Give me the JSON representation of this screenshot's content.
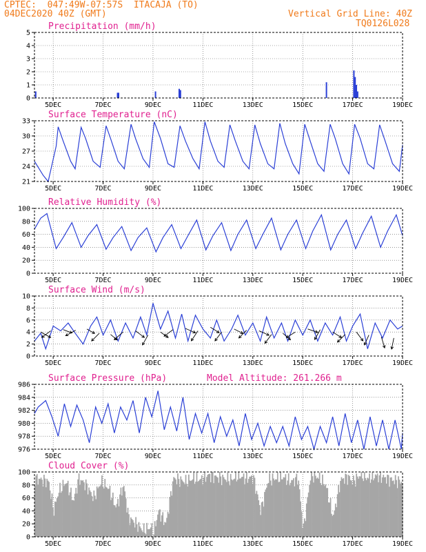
{
  "header": {
    "line1": "CPTEC:  047:49W-07:57S  ITACAJA (TO)",
    "line2": "04DEC2020 40Z (GMT)",
    "grid_note": "Vertical Grid Line: 40Z",
    "code": "TQ0126L028"
  },
  "colors": {
    "header": "#f07a1a",
    "title": "#e0208f",
    "line": "#2a3fd6",
    "cloud": "#a6a6a6"
  },
  "chart_data": [
    {
      "id": "precip",
      "type": "bar",
      "title": "Precipitation (mm/h)",
      "ylim": [
        0,
        5
      ],
      "yticks": [
        "0",
        "1",
        "2",
        "3",
        "4",
        "5"
      ],
      "xticks": [
        "5DEC",
        "7DEC",
        "9DEC",
        "11DEC",
        "13DEC",
        "15DEC",
        "17DEC",
        "19DEC"
      ],
      "x_range_days": [
        4.25,
        19.0
      ],
      "x": [
        4.3,
        7.58,
        7.62,
        9.1,
        10.05,
        10.1,
        15.95,
        17.05,
        17.1,
        17.15,
        17.2
      ],
      "values": [
        0.5,
        0.4,
        0.4,
        0.5,
        0.7,
        0.6,
        1.2,
        2.1,
        1.6,
        1.0,
        0.5
      ]
    },
    {
      "id": "temp",
      "type": "line",
      "title": "Surface Temperature (nC)",
      "ylim": [
        21,
        33
      ],
      "yticks": [
        "21",
        "24",
        "27",
        "30",
        "33"
      ],
      "xticks": [
        "5DEC",
        "7DEC",
        "9DEC",
        "11DEC",
        "13DEC",
        "15DEC",
        "17DEC",
        "19DEC"
      ],
      "x_range_days": [
        4.25,
        19.0
      ],
      "x": [
        4.25,
        4.6,
        4.8,
        5.12,
        5.2,
        5.4,
        5.7,
        5.88,
        6.12,
        6.3,
        6.6,
        6.88,
        7.12,
        7.3,
        7.6,
        7.85,
        8.12,
        8.3,
        8.6,
        8.85,
        9.05,
        9.3,
        9.6,
        9.85,
        10.08,
        10.3,
        10.6,
        10.85,
        11.08,
        11.3,
        11.6,
        11.85,
        12.08,
        12.3,
        12.6,
        12.85,
        13.08,
        13.3,
        13.6,
        13.85,
        14.08,
        14.3,
        14.6,
        14.85,
        15.08,
        15.3,
        15.6,
        15.85,
        16.1,
        16.3,
        16.6,
        16.85,
        17.08,
        17.3,
        17.6,
        17.85,
        18.08,
        18.3,
        18.6,
        18.87,
        19.0
      ],
      "values": [
        25,
        22.2,
        21,
        28,
        31.8,
        29,
        25,
        23.5,
        31.7,
        29.5,
        25,
        23.8,
        32,
        29.5,
        25,
        23.5,
        32.3,
        29.5,
        25.5,
        23.8,
        32.8,
        29.5,
        24.5,
        23.8,
        32,
        29,
        25.5,
        23.5,
        32.8,
        29,
        25,
        23.8,
        32.2,
        29,
        25,
        23.5,
        32.2,
        28.5,
        24.5,
        23.5,
        32.5,
        28.5,
        24.5,
        22.5,
        32.3,
        29,
        24.5,
        23,
        32.3,
        29.5,
        24.5,
        22.5,
        32.3,
        29.5,
        24.5,
        23.5,
        32.2,
        29,
        24.5,
        23,
        28.2
      ]
    },
    {
      "id": "rh",
      "type": "line",
      "title": "Relative Humidity (%)",
      "ylim": [
        0,
        100
      ],
      "yticks": [
        "0",
        "20",
        "40",
        "60",
        "80",
        "100"
      ],
      "xticks": [
        "5DEC",
        "7DEC",
        "9DEC",
        "11DEC",
        "13DEC",
        "15DEC",
        "17DEC",
        "19DEC"
      ],
      "x_range_days": [
        4.25,
        19.0
      ],
      "x": [
        4.25,
        4.5,
        4.75,
        5.12,
        5.4,
        5.75,
        6.12,
        6.4,
        6.75,
        7.12,
        7.4,
        7.75,
        8.12,
        8.4,
        8.75,
        9.12,
        9.4,
        9.75,
        10.12,
        10.4,
        10.75,
        11.12,
        11.4,
        11.75,
        12.12,
        12.4,
        12.75,
        13.12,
        13.4,
        13.75,
        14.12,
        14.4,
        14.75,
        15.12,
        15.4,
        15.75,
        16.12,
        16.4,
        16.75,
        17.12,
        17.4,
        17.75,
        18.12,
        18.4,
        18.75,
        19.0
      ],
      "values": [
        68,
        85,
        92,
        38,
        55,
        78,
        40,
        58,
        75,
        37,
        55,
        72,
        35,
        55,
        70,
        33,
        55,
        75,
        38,
        58,
        82,
        36,
        58,
        78,
        35,
        60,
        82,
        38,
        60,
        85,
        36,
        60,
        82,
        38,
        65,
        90,
        36,
        60,
        82,
        38,
        62,
        88,
        40,
        65,
        90,
        58
      ]
    },
    {
      "id": "wind",
      "type": "line",
      "title": "Surface Wind (m/s)",
      "ylim": [
        0,
        10
      ],
      "yticks": [
        "0",
        "2",
        "4",
        "6",
        "8",
        "10"
      ],
      "xticks": [
        "5DEC",
        "7DEC",
        "9DEC",
        "11DEC",
        "13DEC",
        "15DEC",
        "17DEC",
        "19DEC"
      ],
      "x_range_days": [
        4.25,
        19.0
      ],
      "x": [
        4.25,
        4.5,
        4.7,
        5.0,
        5.3,
        5.6,
        5.85,
        6.2,
        6.5,
        6.75,
        7.0,
        7.3,
        7.6,
        7.9,
        8.2,
        8.5,
        8.75,
        9.0,
        9.3,
        9.6,
        9.9,
        10.15,
        10.4,
        10.7,
        11.0,
        11.3,
        11.55,
        11.85,
        12.15,
        12.4,
        12.7,
        13.0,
        13.3,
        13.55,
        13.85,
        14.15,
        14.4,
        14.7,
        15.0,
        15.3,
        15.6,
        15.9,
        16.2,
        16.5,
        16.75,
        17.0,
        17.3,
        17.6,
        17.9,
        18.2,
        18.5,
        18.8,
        19.0
      ],
      "values": [
        2.5,
        3.8,
        1.2,
        5.0,
        4.2,
        5.5,
        4.0,
        2.0,
        5.0,
        6.5,
        3.5,
        6.0,
        2.5,
        5.5,
        3.0,
        6.5,
        3.5,
        8.8,
        4.5,
        7.5,
        3.0,
        7.0,
        2.5,
        6.8,
        4.5,
        3.0,
        6.0,
        2.5,
        4.5,
        6.8,
        3.5,
        5.5,
        2.5,
        6.5,
        3.0,
        5.5,
        2.5,
        6.0,
        3.5,
        6.0,
        2.5,
        5.5,
        3.5,
        6.5,
        2.5,
        5.0,
        7.0,
        1.2,
        5.5,
        3.0,
        6.0,
        4.5,
        5.0
      ],
      "arrows_days": [
        4.5,
        4.9,
        5.4,
        5.9,
        6.35,
        6.85,
        7.3,
        7.8,
        8.3,
        8.8,
        9.3,
        9.8,
        10.3,
        10.8,
        11.3,
        11.75,
        12.25,
        12.75,
        13.25,
        13.75,
        14.2,
        14.7,
        15.2,
        15.7,
        16.2,
        16.7,
        17.15,
        17.65,
        18.15,
        18.65
      ],
      "arrows_speed": [
        4.0,
        4.2,
        4.4,
        4.3,
        4.5,
        3.8,
        3.6,
        4.0,
        4.2,
        3.5,
        4.0,
        4.4,
        4.6,
        4.2,
        4.8,
        4.0,
        4.5,
        4.3,
        4.2,
        3.6,
        3.8,
        4.0,
        4.5,
        4.4,
        4.0,
        3.6,
        4.0,
        3.5,
        3.2,
        3.0
      ],
      "arrows_dx": [
        0.9,
        -0.8,
        0.8,
        -0.9,
        0.7,
        -0.7,
        0.6,
        -0.8,
        0.8,
        -0.5,
        0.7,
        -0.8,
        0.9,
        -0.6,
        0.8,
        -0.6,
        0.8,
        -0.7,
        0.9,
        -0.6,
        0.7,
        -0.8,
        0.9,
        -0.5,
        0.8,
        -0.7,
        0.6,
        -0.4,
        0.3,
        -0.2
      ],
      "arrows_dy": [
        -0.5,
        -0.6,
        -0.3,
        -0.5,
        -0.4,
        -0.7,
        -0.5,
        -0.7,
        -0.6,
        -0.9,
        -0.5,
        -0.6,
        -0.4,
        -0.9,
        -0.5,
        -0.8,
        -0.4,
        -0.7,
        -0.4,
        -0.8,
        -0.6,
        -0.5,
        -0.3,
        -0.9,
        -0.5,
        -0.7,
        -0.8,
        -0.9,
        -1.0,
        -1.0
      ]
    },
    {
      "id": "press",
      "type": "line",
      "title": "Surface Pressure (hPa)",
      "annotation": "Model Altitude: 261.266 m",
      "ylim": [
        976,
        986
      ],
      "yticks": [
        "976",
        "978",
        "980",
        "982",
        "984",
        "986"
      ],
      "xticks": [
        "5DEC",
        "7DEC",
        "9DEC",
        "11DEC",
        "13DEC",
        "15DEC",
        "17DEC",
        "19DEC"
      ],
      "x_range_days": [
        4.25,
        19.0
      ],
      "x": [
        4.25,
        4.4,
        4.7,
        4.95,
        5.2,
        5.45,
        5.7,
        5.95,
        6.2,
        6.45,
        6.7,
        6.95,
        7.2,
        7.45,
        7.7,
        7.95,
        8.2,
        8.45,
        8.7,
        8.95,
        9.2,
        9.45,
        9.7,
        9.95,
        10.2,
        10.45,
        10.7,
        10.95,
        11.2,
        11.45,
        11.7,
        11.95,
        12.2,
        12.45,
        12.7,
        12.95,
        13.2,
        13.45,
        13.7,
        13.95,
        14.2,
        14.45,
        14.7,
        14.95,
        15.2,
        15.45,
        15.7,
        15.95,
        16.2,
        16.45,
        16.7,
        16.95,
        17.2,
        17.45,
        17.7,
        17.95,
        18.2,
        18.45,
        18.7,
        18.95,
        19.0
      ],
      "values": [
        981.5,
        982.5,
        983.5,
        981.0,
        978.0,
        983.0,
        979.5,
        982.8,
        980.5,
        977.0,
        982.5,
        980.0,
        983.0,
        978.5,
        982.5,
        980.5,
        983.5,
        978.5,
        984.0,
        981.0,
        985.0,
        979.0,
        982.5,
        978.8,
        984.0,
        977.5,
        981.5,
        978.5,
        981.5,
        977.0,
        981.0,
        978.0,
        980.5,
        976.5,
        981.5,
        977.5,
        980.0,
        976.5,
        979.5,
        977.0,
        979.5,
        976.5,
        981.0,
        977.5,
        979.5,
        976.0,
        979.5,
        977.0,
        981.0,
        976.5,
        981.5,
        977.0,
        980.5,
        976.0,
        981.0,
        976.5,
        980.5,
        976.0,
        980.5,
        976.0,
        978.5
      ]
    },
    {
      "id": "cloud",
      "type": "area",
      "title": "Cloud Cover (%)",
      "ylim": [
        0,
        100
      ],
      "yticks": [
        "0",
        "20",
        "40",
        "60",
        "80",
        "100"
      ],
      "xticks": [
        "5DEC",
        "7DEC",
        "9DEC",
        "11DEC",
        "13DEC",
        "15DEC",
        "17DEC",
        "19DEC"
      ],
      "x_range_days": [
        4.25,
        19.0
      ],
      "x": [
        4.25,
        4.5,
        4.8,
        5.0,
        5.2,
        5.5,
        5.8,
        6.0,
        6.3,
        6.6,
        6.9,
        7.2,
        7.5,
        7.8,
        8.0,
        8.3,
        8.6,
        8.9,
        9.0,
        9.2,
        9.5,
        9.8,
        10.0,
        10.3,
        10.6,
        10.9,
        11.2,
        11.5,
        11.8,
        12.1,
        12.4,
        12.7,
        13.0,
        13.3,
        13.6,
        13.9,
        14.2,
        14.5,
        14.8,
        15.0,
        15.3,
        15.6,
        15.9,
        16.2,
        16.5,
        16.8,
        17.0,
        17.3,
        17.6,
        17.9,
        18.2,
        18.5,
        18.8,
        19.0
      ],
      "values": [
        90,
        88,
        85,
        40,
        70,
        85,
        55,
        90,
        80,
        60,
        85,
        75,
        45,
        80,
        30,
        20,
        10,
        15,
        5,
        40,
        20,
        90,
        88,
        85,
        90,
        88,
        95,
        92,
        90,
        88,
        94,
        90,
        92,
        40,
        88,
        90,
        92,
        85,
        90,
        10,
        95,
        92,
        80,
        30,
        88,
        92,
        85,
        96,
        90,
        94,
        92,
        88,
        86,
        85
      ]
    }
  ]
}
